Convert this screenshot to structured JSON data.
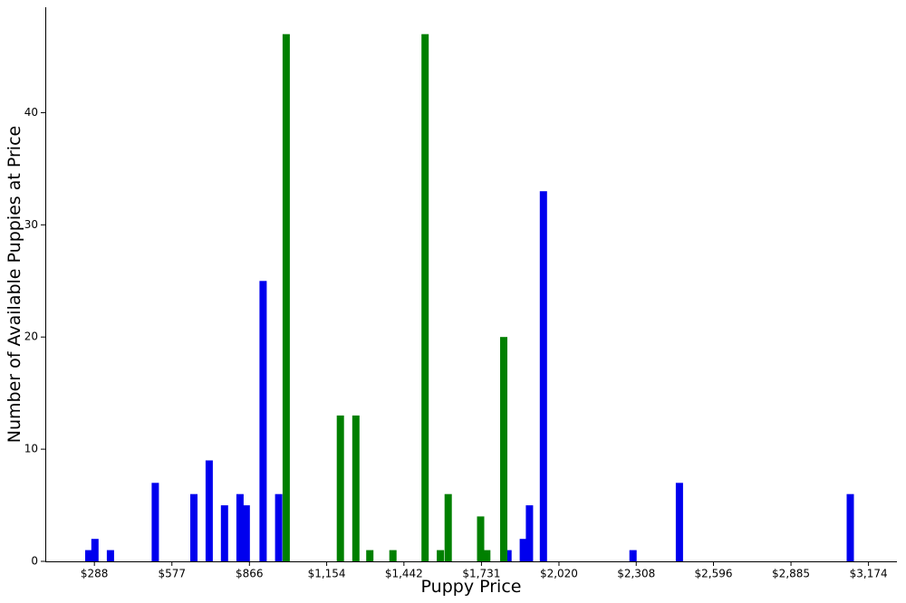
{
  "chart_data": {
    "type": "bar",
    "xlabel": "Puppy Price",
    "ylabel": "Number of Available Puppies at Price",
    "x_ticks": [
      288,
      577,
      866,
      1154,
      1442,
      1731,
      2020,
      2308,
      2596,
      2885,
      3174
    ],
    "x_tick_labels": [
      "$288",
      "$577",
      "$866",
      "$1,154",
      "$1,442",
      "$1,731",
      "$2,020",
      "$2,308",
      "$2,596",
      "$2,885",
      "$3,174"
    ],
    "y_ticks": [
      0,
      10,
      20,
      30,
      40
    ],
    "xlim": [
      105,
      3280
    ],
    "ylim": [
      0,
      49.4
    ],
    "grid": false,
    "colors": {
      "blue": "#0000ee",
      "green": "#008000"
    },
    "series": [
      {
        "color": "blue",
        "points": [
          {
            "x": 267,
            "y": 1
          },
          {
            "x": 290,
            "y": 2
          },
          {
            "x": 348,
            "y": 1
          },
          {
            "x": 515,
            "y": 7
          },
          {
            "x": 659,
            "y": 6
          },
          {
            "x": 716,
            "y": 9
          },
          {
            "x": 773,
            "y": 5
          },
          {
            "x": 831,
            "y": 6
          },
          {
            "x": 854,
            "y": 5
          },
          {
            "x": 917,
            "y": 25
          },
          {
            "x": 975,
            "y": 6
          },
          {
            "x": 1830,
            "y": 1
          },
          {
            "x": 1887,
            "y": 2
          },
          {
            "x": 1910,
            "y": 5
          },
          {
            "x": 1962,
            "y": 33
          },
          {
            "x": 2296,
            "y": 1
          },
          {
            "x": 2469,
            "y": 7
          },
          {
            "x": 3106,
            "y": 6
          }
        ]
      },
      {
        "color": "green",
        "points": [
          {
            "x": 1003,
            "y": 47
          },
          {
            "x": 1205,
            "y": 13
          },
          {
            "x": 1263,
            "y": 13
          },
          {
            "x": 1315,
            "y": 1
          },
          {
            "x": 1401,
            "y": 1
          },
          {
            "x": 1521,
            "y": 47
          },
          {
            "x": 1578,
            "y": 1
          },
          {
            "x": 1607,
            "y": 6
          },
          {
            "x": 1728,
            "y": 4
          },
          {
            "x": 1751,
            "y": 1
          },
          {
            "x": 1814,
            "y": 20
          }
        ]
      }
    ]
  }
}
